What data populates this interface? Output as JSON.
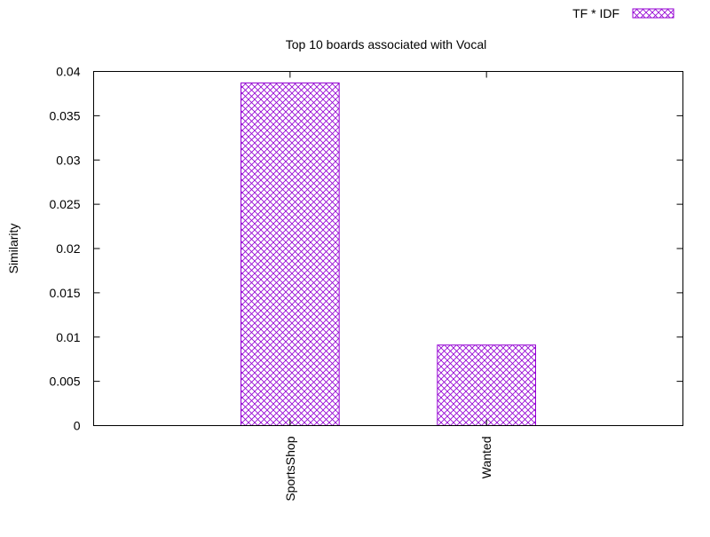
{
  "chart_data": {
    "type": "bar",
    "title": "Top 10 boards associated with Vocal",
    "xlabel": "",
    "ylabel": "Similarity",
    "categories": [
      "SportsShop",
      "Wanted"
    ],
    "series": [
      {
        "name": "TF * IDF",
        "values": [
          0.0387,
          0.0091
        ],
        "color": "#9400d3",
        "pattern": "crosshatch"
      }
    ],
    "ylim": [
      0,
      0.04
    ],
    "yticks": [
      0,
      0.005,
      0.01,
      0.015,
      0.02,
      0.025,
      0.03,
      0.035,
      0.04
    ],
    "ytick_labels": [
      "0",
      "0.005",
      "0.01",
      "0.015",
      "0.02",
      "0.025",
      "0.03",
      "0.035",
      "0.04"
    ],
    "grid": false,
    "legend_position": "top-right",
    "tick_label_rotation": "vertical"
  }
}
